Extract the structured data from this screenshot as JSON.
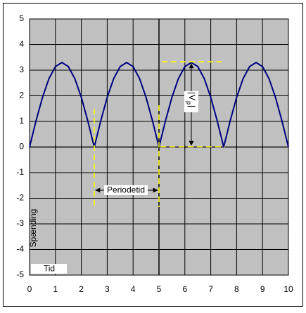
{
  "chart_data": {
    "type": "line",
    "x_label": "Tid",
    "y_label": "Spænding",
    "annotations": {
      "period": "Periodetid",
      "peak": {
        "text": "V",
        "subscript": "p"
      }
    },
    "x": [
      0,
      0.25,
      0.5,
      0.75,
      1,
      1.25,
      1.5,
      1.75,
      2,
      2.25,
      2.5,
      2.75,
      3,
      3.25,
      3.5,
      3.75,
      4,
      4.25,
      4.5,
      4.75,
      5,
      5.25,
      5.5,
      5.75,
      6,
      6.25,
      6.5,
      6.75,
      7,
      7.25,
      7.5,
      7.75,
      8,
      8.25,
      8.5,
      8.75,
      9,
      9.25,
      9.5,
      9.75,
      10
    ],
    "series": [
      {
        "color": "#000080",
        "values": [
          0,
          1.02,
          1.94,
          2.67,
          3.14,
          3.3,
          3.14,
          2.67,
          1.94,
          1.02,
          0,
          1.02,
          1.94,
          2.67,
          3.14,
          3.3,
          3.14,
          2.67,
          1.94,
          1.02,
          0,
          1.02,
          1.94,
          2.67,
          3.14,
          3.3,
          3.14,
          2.67,
          1.94,
          1.02,
          0,
          1.02,
          1.94,
          2.67,
          3.14,
          3.3,
          3.14,
          2.67,
          1.94,
          1.02,
          0
        ]
      }
    ],
    "xlim": [
      0,
      10
    ],
    "ylim": [
      -5,
      5
    ],
    "xticks": [
      0,
      1,
      2,
      3,
      4,
      5,
      6,
      7,
      8,
      9,
      10
    ],
    "yticks": [
      -5,
      -4,
      -3,
      -2,
      -1,
      0,
      1,
      2,
      3,
      4,
      5
    ],
    "grid": true,
    "background": "#c0c0c0"
  }
}
